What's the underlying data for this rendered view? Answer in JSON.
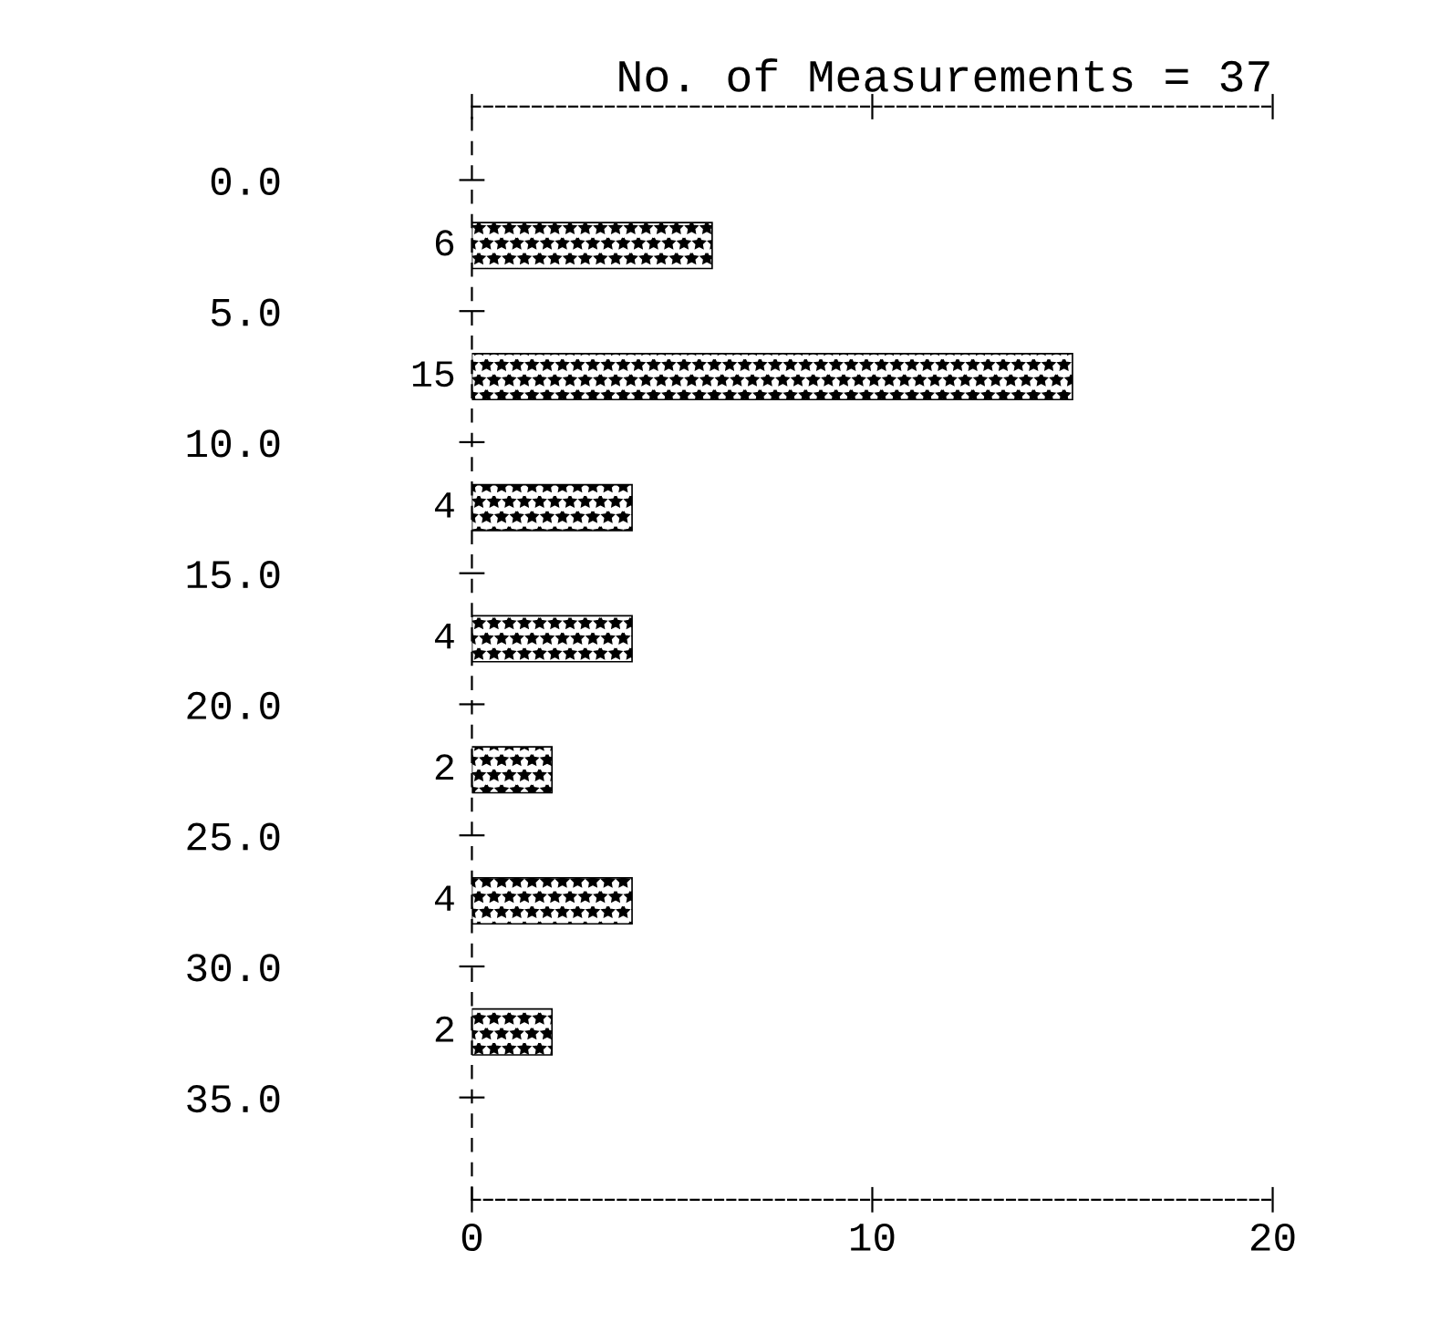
{
  "chart_data": {
    "type": "histogram",
    "orientation": "horizontal",
    "title": "No. of Measurements = 37",
    "bins": [
      0,
      5,
      10,
      15,
      20,
      25,
      30,
      35
    ],
    "values": [
      6,
      15,
      4,
      4,
      2,
      4,
      2
    ],
    "color": "#000000",
    "data_labels": true,
    "grid": false,
    "legend": false,
    "xlim": [
      0,
      20
    ],
    "xticks": [
      0,
      10,
      20
    ],
    "ylim": [
      38.9,
      -2.8
    ],
    "yticks": [
      {
        "value": 0,
        "label": "0.0"
      },
      {
        "value": 5,
        "label": "5.0"
      },
      {
        "value": 10,
        "label": "10.0"
      },
      {
        "value": 15,
        "label": "15.0"
      },
      {
        "value": 20,
        "label": "20.0"
      },
      {
        "value": 25,
        "label": "25.0"
      },
      {
        "value": 30,
        "label": "30.0"
      },
      {
        "value": 35,
        "label": "35.0"
      }
    ]
  }
}
